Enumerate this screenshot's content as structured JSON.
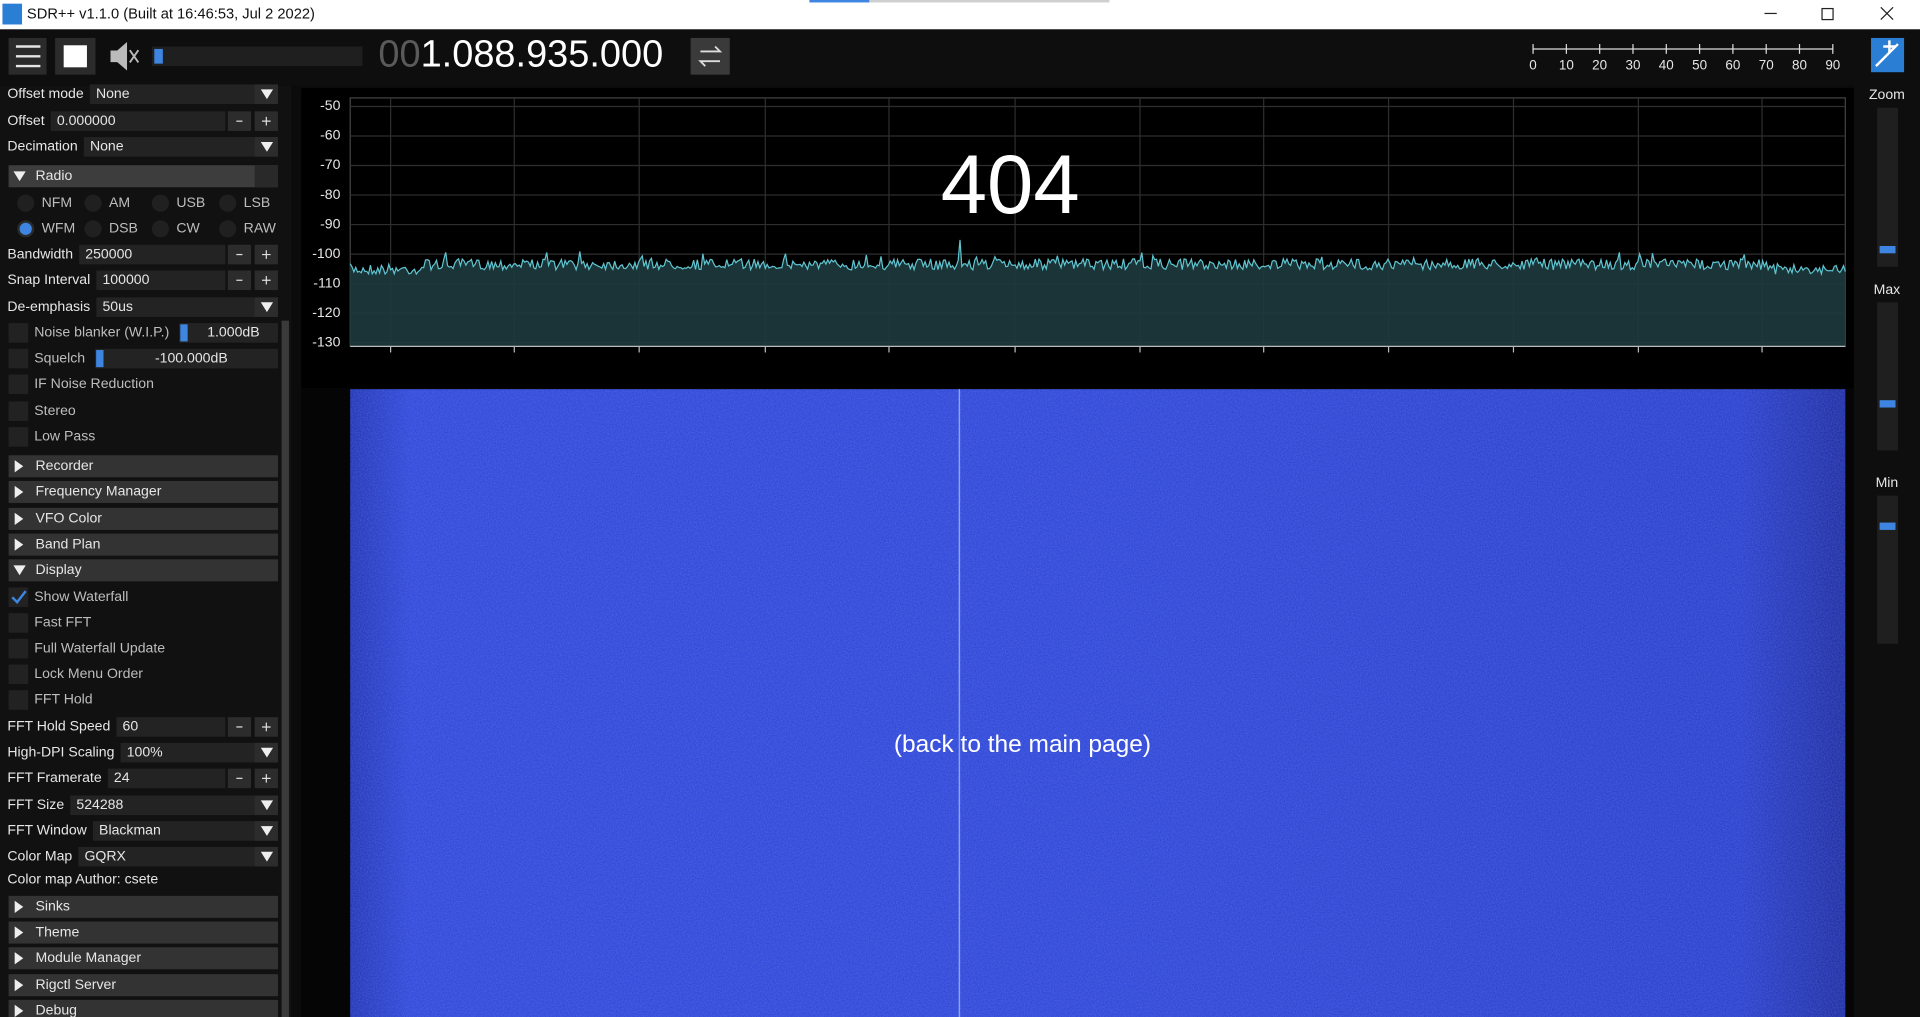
{
  "window": {
    "title": "SDR++ v1.1.0 (Built at 16:46:53, Jul  2 2022)"
  },
  "toolbar": {
    "frequency_prefix": "00",
    "frequency": "1.088.935.000",
    "volume_ticks": [
      0,
      10,
      20,
      30,
      40,
      50,
      60,
      70,
      80,
      90
    ]
  },
  "menu": {
    "items": [
      {
        "kind": "select",
        "label": "Offset mode",
        "value": "None"
      },
      {
        "kind": "input",
        "label": "Offset",
        "value": "0.000000"
      },
      {
        "kind": "select",
        "label": "Decimation",
        "value": "None"
      },
      {
        "kind": "header",
        "label": "Radio",
        "open": true
      },
      {
        "kind": "radio",
        "options": [
          "NFM",
          "AM",
          "USB",
          "LSB",
          "WFM",
          "DSB",
          "CW",
          "RAW"
        ],
        "selected_index": 4
      },
      {
        "kind": "input",
        "label": "Bandwidth",
        "value": "250000"
      },
      {
        "kind": "input",
        "label": "Snap Interval",
        "value": "100000"
      },
      {
        "kind": "select",
        "label": "De-emphasis",
        "value": "50us"
      },
      {
        "kind": "slider",
        "label": "Noise blanker (W.I.P.)",
        "value": "1.000dB"
      },
      {
        "kind": "slider",
        "label": "Squelch",
        "value": "-100.000dB"
      },
      {
        "kind": "checkbox",
        "label": "IF Noise Reduction",
        "checked": false
      },
      {
        "kind": "checkbox",
        "label": "Stereo",
        "checked": false
      },
      {
        "kind": "checkbox",
        "label": "Low Pass",
        "checked": false
      },
      {
        "kind": "header",
        "label": "Recorder",
        "open": false
      },
      {
        "kind": "header",
        "label": "Frequency Manager",
        "open": false
      },
      {
        "kind": "header",
        "label": "VFO Color",
        "open": false
      },
      {
        "kind": "header",
        "label": "Band Plan",
        "open": false
      },
      {
        "kind": "header",
        "label": "Display",
        "open": true
      },
      {
        "kind": "checkbox",
        "label": "Show Waterfall",
        "checked": true
      },
      {
        "kind": "checkbox",
        "label": "Fast FFT",
        "checked": false
      },
      {
        "kind": "checkbox",
        "label": "Full Waterfall Update",
        "checked": false
      },
      {
        "kind": "checkbox",
        "label": "Lock Menu Order",
        "checked": false
      },
      {
        "kind": "checkbox",
        "label": "FFT Hold",
        "checked": false
      },
      {
        "kind": "input",
        "label": "FFT Hold Speed",
        "value": "60"
      },
      {
        "kind": "select",
        "label": "High-DPI Scaling",
        "value": "100%"
      },
      {
        "kind": "input",
        "label": "FFT Framerate",
        "value": "24"
      },
      {
        "kind": "select",
        "label": "FFT Size",
        "value": "524288"
      },
      {
        "kind": "select",
        "label": "FFT Window",
        "value": "Blackman"
      },
      {
        "kind": "select",
        "label": "Color Map",
        "value": "GQRX"
      },
      {
        "kind": "text",
        "label": "Color map Author: csete"
      },
      {
        "kind": "header",
        "label": "Sinks",
        "open": false
      },
      {
        "kind": "header",
        "label": "Theme",
        "open": false
      },
      {
        "kind": "header",
        "label": "Module Manager",
        "open": false
      },
      {
        "kind": "header",
        "label": "Rigctl Server",
        "open": false
      },
      {
        "kind": "header",
        "label": "Debug",
        "open": false
      }
    ]
  },
  "spectrum": {
    "yticks": [
      -50,
      -60,
      -70,
      -80,
      -90,
      -100,
      -110,
      -120,
      -130
    ]
  },
  "error": {
    "code": "404",
    "link": "(back to the main page)"
  },
  "right_panel": {
    "labels": [
      "Zoom",
      "Max",
      "Min"
    ]
  }
}
